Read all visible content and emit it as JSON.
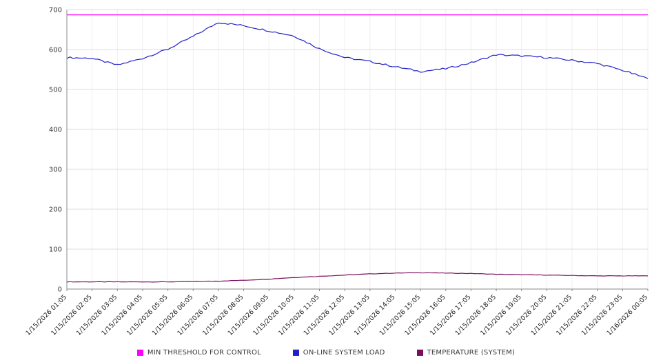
{
  "chart_data": {
    "type": "line",
    "x": [
      "1/15/2026 01:05",
      "1/15/2026 02:05",
      "1/15/2026 03:05",
      "1/15/2026 04:05",
      "1/15/2026 05:05",
      "1/15/2026 06:05",
      "1/15/2026 07:05",
      "1/15/2026 08:05",
      "1/15/2026 09:05",
      "1/15/2026 10:05",
      "1/15/2026 11:05",
      "1/15/2026 12:05",
      "1/15/2026 13:05",
      "1/15/2026 14:05",
      "1/15/2026 15:05",
      "1/15/2026 16:05",
      "1/15/2026 17:05",
      "1/15/2026 18:05",
      "1/15/2026 19:05",
      "1/15/2026 20:05",
      "1/15/2026 21:05",
      "1/15/2026 22:05",
      "1/15/2026 23:05",
      "1/16/2026 00:05"
    ],
    "series": [
      {
        "name": "MIN THRESHOLD FOR CONTROL",
        "color": "#ff00ff",
        "values": [
          687,
          687,
          687,
          687,
          687,
          687,
          687,
          687,
          687,
          687,
          687,
          687,
          687,
          687,
          687,
          687,
          687,
          687,
          687,
          687,
          687,
          687,
          687,
          687
        ]
      },
      {
        "name": "ON-LINE SYSTEM LOAD",
        "color": "#2020cc",
        "values": [
          580,
          578,
          561,
          578,
          601,
          633,
          668,
          660,
          647,
          634,
          602,
          580,
          570,
          557,
          545,
          552,
          567,
          587,
          584,
          580,
          573,
          565,
          548,
          527
        ]
      },
      {
        "name": "TEMPERATURE (SYSTEM)",
        "color": "#7b0d5e",
        "values": [
          18,
          18,
          18,
          18,
          18,
          19,
          20,
          22,
          25,
          29,
          32,
          35,
          38,
          40,
          41,
          40,
          39,
          37,
          36,
          35,
          34,
          33,
          33,
          33
        ]
      }
    ],
    "title": "",
    "xlabel": "",
    "ylabel": "",
    "ylim": [
      0,
      700
    ],
    "yticks": [
      0,
      100,
      200,
      300,
      400,
      500,
      600,
      700
    ],
    "grid": true,
    "legend_position": "bottom"
  }
}
